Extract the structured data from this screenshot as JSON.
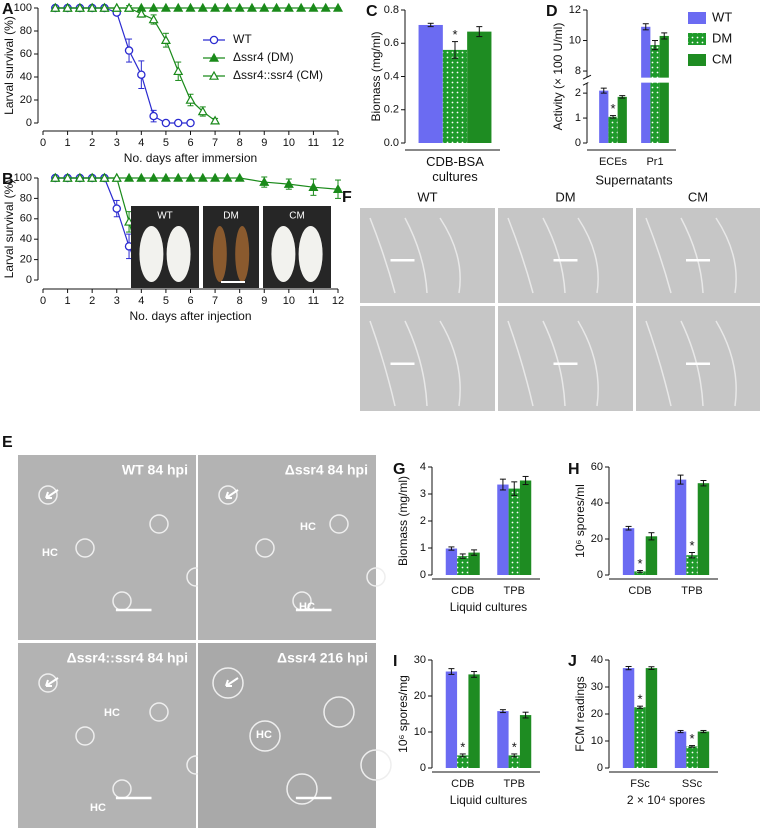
{
  "chart_data": [
    {
      "panel": "A",
      "type": "line",
      "xlabel": "No. days after immersion",
      "ylabel": "Larval survival (%)",
      "xlim": [
        0,
        12
      ],
      "xticks": [
        0,
        1,
        2,
        3,
        4,
        5,
        6,
        7,
        8,
        9,
        10,
        11,
        12
      ],
      "ylim": [
        0,
        100
      ],
      "yticks": [
        0,
        20,
        40,
        60,
        80,
        100
      ],
      "legend": "upper right",
      "series": [
        {
          "name": "WT",
          "color": "#2b2bd0",
          "marker": "circle-open",
          "x": [
            0.5,
            1,
            1.5,
            2,
            2.5,
            3,
            3.5,
            4,
            4.5,
            5,
            5.5,
            6
          ],
          "values": [
            100,
            100,
            100,
            100,
            100,
            96,
            63,
            42,
            6,
            0,
            0,
            0
          ],
          "errors": [
            0,
            0,
            0,
            0,
            0,
            2,
            10,
            12,
            5,
            0,
            0,
            0
          ]
        },
        {
          "name": "Δssr4 (DM)",
          "color": "#1a8a1a",
          "marker": "triangle-filled",
          "x": [
            0.5,
            1,
            1.5,
            2,
            2.5,
            3,
            3.5,
            4,
            4.5,
            5,
            5.5,
            6,
            6.5,
            7,
            7.5,
            8,
            8.5,
            9,
            9.5,
            10,
            10.5,
            11,
            11.5,
            12
          ],
          "values": [
            100,
            100,
            100,
            100,
            100,
            100,
            100,
            100,
            100,
            100,
            100,
            100,
            100,
            100,
            100,
            100,
            100,
            100,
            100,
            100,
            100,
            100,
            100,
            100
          ],
          "errors": [
            0,
            0,
            0,
            0,
            0,
            0,
            0,
            0,
            0,
            0,
            0,
            0,
            0,
            0,
            0,
            0,
            0,
            0,
            0,
            0,
            0,
            0,
            0,
            0
          ]
        },
        {
          "name": "Δssr4::ssr4 (CM)",
          "color": "#1a8a1a",
          "marker": "triangle-open",
          "x": [
            0.5,
            1,
            1.5,
            2,
            2.5,
            3,
            3.5,
            4,
            4.5,
            5,
            5.5,
            6,
            6.5,
            7
          ],
          "values": [
            100,
            100,
            100,
            100,
            100,
            100,
            100,
            95,
            90,
            72,
            45,
            20,
            10,
            2
          ],
          "errors": [
            0,
            0,
            0,
            0,
            0,
            0,
            2,
            3,
            4,
            6,
            8,
            5,
            4,
            2
          ]
        }
      ]
    },
    {
      "panel": "B",
      "type": "line",
      "xlabel": "No. days after injection",
      "ylabel": "Larval survival (%)",
      "xlim": [
        0,
        12
      ],
      "xticks": [
        0,
        1,
        2,
        3,
        4,
        5,
        6,
        7,
        8,
        9,
        10,
        11,
        12
      ],
      "ylim": [
        0,
        100
      ],
      "yticks": [
        0,
        20,
        40,
        60,
        80,
        100
      ],
      "inset_labels": [
        "WT",
        "DM",
        "CM"
      ],
      "series": [
        {
          "name": "WT",
          "color": "#2b2bd0",
          "marker": "circle-open",
          "x": [
            0.5,
            1,
            1.5,
            2,
            2.5,
            3,
            3.5,
            4,
            4.5,
            5,
            5.5,
            6
          ],
          "values": [
            100,
            100,
            100,
            100,
            100,
            70,
            33,
            3,
            0,
            0,
            0,
            0
          ],
          "errors": [
            0,
            0,
            0,
            0,
            0,
            8,
            12,
            3,
            0,
            0,
            0,
            0
          ]
        },
        {
          "name": "DM",
          "color": "#1a8a1a",
          "marker": "triangle-filled",
          "x": [
            0.5,
            1,
            1.5,
            2,
            2.5,
            3,
            3.5,
            4,
            4.5,
            5,
            5.5,
            6,
            6.5,
            7,
            7.5,
            8,
            9,
            10,
            11,
            12
          ],
          "values": [
            100,
            100,
            100,
            100,
            100,
            100,
            100,
            100,
            100,
            100,
            100,
            100,
            100,
            100,
            100,
            100,
            96,
            94,
            91,
            89
          ],
          "errors": [
            0,
            0,
            0,
            0,
            0,
            0,
            0,
            0,
            0,
            0,
            0,
            0,
            0,
            0,
            0,
            0,
            5,
            5,
            8,
            9
          ]
        },
        {
          "name": "CM",
          "color": "#1a8a1a",
          "marker": "triangle-open",
          "x": [
            0.5,
            1,
            1.5,
            2,
            2.5,
            3,
            3.5,
            4,
            4.5,
            5,
            5.5,
            6
          ],
          "values": [
            100,
            100,
            100,
            100,
            100,
            100,
            57,
            12,
            3,
            2,
            0,
            0
          ],
          "errors": [
            0,
            0,
            0,
            0,
            0,
            0,
            10,
            6,
            2,
            1,
            0,
            0
          ]
        }
      ]
    },
    {
      "panel": "C",
      "type": "bar",
      "ylabel": "Biomass (mg/ml)",
      "xlabel": "CDB-BSA cultures",
      "categories": [
        null
      ],
      "ylim": [
        0,
        0.8
      ],
      "yticks": [
        {
          "value": 0,
          "label": "0.0"
        },
        0.2,
        0.4,
        0.6,
        0.8
      ],
      "series": [
        {
          "name": "WT",
          "color": "#6b6bf2",
          "values": [
            0.71
          ],
          "errors": [
            0.01
          ]
        },
        {
          "name": "DM",
          "color": "#1e9a2a",
          "pattern": "dots",
          "values": [
            0.56
          ],
          "errors": [
            0.05
          ],
          "significance": [
            "*"
          ]
        },
        {
          "name": "CM",
          "color": "#1e8c22",
          "values": [
            0.67
          ],
          "errors": [
            0.03
          ]
        }
      ]
    },
    {
      "panel": "D",
      "type": "bar",
      "ylabel": "Activity (× 100 U/ml)",
      "xlabel": "Supernatants",
      "categories": [
        "ECEs",
        "Pr1"
      ],
      "ylim": [
        0,
        12
      ],
      "axis_break": [
        2.4,
        7.6
      ],
      "yticks": [
        0,
        1,
        2,
        8,
        10,
        12
      ],
      "legend": "right",
      "series": [
        {
          "name": "WT",
          "color": "#6b6bf2",
          "values": [
            2.1,
            10.9
          ],
          "errors": [
            0.1,
            0.2
          ]
        },
        {
          "name": "DM",
          "color": "#1e9a2a",
          "pattern": "dots",
          "values": [
            1.05,
            9.7
          ],
          "errors": [
            0.05,
            0.3
          ],
          "significance": [
            "*",
            null
          ]
        },
        {
          "name": "CM",
          "color": "#1e8c22",
          "values": [
            1.85,
            10.3
          ],
          "errors": [
            0.05,
            0.2
          ]
        }
      ]
    },
    {
      "panel": "G",
      "type": "bar",
      "ylabel": "Biomass (mg/ml)",
      "xlabel": "Liquid cultures",
      "categories": [
        "CDB",
        "TPB"
      ],
      "ylim": [
        0,
        4
      ],
      "yticks": [
        0,
        1,
        2,
        3,
        4
      ],
      "series": [
        {
          "name": "WT",
          "color": "#6b6bf2",
          "values": [
            0.98,
            3.35
          ],
          "errors": [
            0.06,
            0.2
          ]
        },
        {
          "name": "DM",
          "color": "#1e9a2a",
          "pattern": "dots",
          "values": [
            0.7,
            3.2
          ],
          "errors": [
            0.08,
            0.25
          ]
        },
        {
          "name": "CM",
          "color": "#1e8c22",
          "values": [
            0.83,
            3.5
          ],
          "errors": [
            0.1,
            0.15
          ]
        }
      ]
    },
    {
      "panel": "H",
      "type": "bar",
      "ylabel": "10⁶ spores/ml",
      "categories": [
        "CDB",
        "TPB"
      ],
      "ylim": [
        0,
        60
      ],
      "yticks": [
        0,
        20,
        40,
        60
      ],
      "series": [
        {
          "name": "WT",
          "color": "#6b6bf2",
          "values": [
            26,
            53
          ],
          "errors": [
            1,
            2.5
          ]
        },
        {
          "name": "DM",
          "color": "#1e9a2a",
          "pattern": "dots",
          "values": [
            2,
            11
          ],
          "errors": [
            0.5,
            1.5
          ],
          "significance": [
            "*",
            "*"
          ]
        },
        {
          "name": "CM",
          "color": "#1e8c22",
          "values": [
            21.5,
            51
          ],
          "errors": [
            2,
            1.5
          ]
        }
      ]
    },
    {
      "panel": "I",
      "type": "bar",
      "ylabel": "10⁶ spores/mg",
      "xlabel": "Liquid cultures",
      "categories": [
        "CDB",
        "TPB"
      ],
      "ylim": [
        0,
        30
      ],
      "yticks": [
        0,
        10,
        20,
        30
      ],
      "series": [
        {
          "name": "WT",
          "color": "#6b6bf2",
          "values": [
            26.8,
            15.8
          ],
          "errors": [
            0.8,
            0.4
          ]
        },
        {
          "name": "DM",
          "color": "#1e9a2a",
          "pattern": "dots",
          "values": [
            3.5,
            3.5
          ],
          "errors": [
            0.4,
            0.4
          ],
          "significance": [
            "*",
            "*"
          ]
        },
        {
          "name": "CM",
          "color": "#1e8c22",
          "values": [
            26,
            14.7
          ],
          "errors": [
            0.8,
            0.8
          ]
        }
      ]
    },
    {
      "panel": "J",
      "type": "bar",
      "ylabel": "FCM readings",
      "xlabel": "2 × 10⁴ spores",
      "categories": [
        "FSc",
        "SSc"
      ],
      "ylim": [
        0,
        40
      ],
      "yticks": [
        0,
        10,
        20,
        30,
        40
      ],
      "series": [
        {
          "name": "WT",
          "color": "#6b6bf2",
          "values": [
            37,
            13.5
          ],
          "errors": [
            0.6,
            0.4
          ]
        },
        {
          "name": "DM",
          "color": "#1e9a2a",
          "pattern": "dots",
          "values": [
            22.5,
            8
          ],
          "errors": [
            0.4,
            0.3
          ],
          "significance": [
            "*",
            "*"
          ]
        },
        {
          "name": "CM",
          "color": "#1e8c22",
          "values": [
            37,
            13.5
          ],
          "errors": [
            0.5,
            0.4
          ]
        }
      ]
    }
  ],
  "images": [
    {
      "panel": "F",
      "columns": [
        "WT",
        "DM",
        "CM"
      ]
    },
    {
      "panel": "E",
      "tiles": [
        {
          "label": "WT 84 hpi",
          "hc": [
            "HC"
          ]
        },
        {
          "label": "Δssr4 84 hpi",
          "hc": [
            "HC",
            "HC"
          ]
        },
        {
          "label": "Δssr4::ssr4 84 hpi",
          "hc": [
            "HC",
            "HC"
          ]
        },
        {
          "label": "Δssr4 216 hpi",
          "hc": [
            "HC"
          ]
        }
      ]
    }
  ]
}
